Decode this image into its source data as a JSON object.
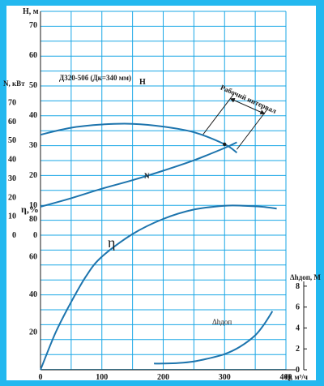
{
  "chart_data": {
    "type": "line",
    "frame_color": "#23b8ef",
    "grid_color": "#1aa7e6",
    "curve_color": "#1d74ad",
    "x_axis": {
      "label": "Q, м³/ч",
      "range": [
        0,
        400
      ],
      "ticks": [
        "0",
        "100",
        "200",
        "300",
        "400"
      ]
    },
    "axes": {
      "H": {
        "label": "H, м",
        "range": [
          0,
          70
        ],
        "ticks": [
          "70",
          "60",
          "50",
          "40",
          "30",
          "20",
          "10",
          "0"
        ]
      },
      "N": {
        "label": "N, кВт",
        "range": [
          0,
          80
        ],
        "ticks": [
          "80",
          "70",
          "60",
          "50",
          "40",
          "30",
          "20",
          "10",
          "0"
        ]
      },
      "eta": {
        "label": "η,%",
        "range": [
          0,
          80
        ],
        "ticks": [
          "80",
          "60",
          "40",
          "20",
          "0"
        ]
      },
      "dh": {
        "label": "Δhдоп, М",
        "range": [
          0,
          9
        ],
        "ticks": [
          "8",
          "6",
          "4",
          "2",
          "0"
        ]
      }
    },
    "series": [
      {
        "name": "H",
        "axis": "H",
        "label": "H",
        "pump_label": "Д320-50б (Дк=340 мм)",
        "x": [
          0,
          50,
          100,
          150,
          200,
          250,
          300,
          320
        ],
        "y": [
          33.5,
          35.8,
          36.9,
          37.1,
          36.2,
          34.3,
          30.3,
          27.5
        ]
      },
      {
        "name": "N",
        "axis": "N",
        "label": "N",
        "x": [
          0,
          50,
          100,
          150,
          200,
          250,
          300,
          320
        ],
        "y": [
          15,
          19.5,
          24.5,
          29,
          34,
          39.5,
          46,
          49
        ]
      },
      {
        "name": "η",
        "axis": "eta",
        "label": "η",
        "x": [
          0,
          25,
          50,
          75,
          100,
          150,
          200,
          250,
          300,
          330,
          360,
          385
        ],
        "y": [
          0,
          20,
          36,
          50,
          60,
          72,
          80,
          85,
          87,
          87,
          86.5,
          85.5
        ]
      },
      {
        "name": "Δhдоп",
        "axis": "dh",
        "label": "Δhдоп",
        "x": [
          185,
          200,
          225,
          250,
          275,
          300,
          325,
          350,
          365,
          378
        ],
        "y": [
          0.6,
          0.6,
          0.65,
          0.8,
          1.1,
          1.5,
          2.2,
          3.3,
          4.4,
          5.6
        ]
      }
    ],
    "working_interval": {
      "label": "Рабочий интервал",
      "x": [
        265,
        320
      ]
    }
  }
}
